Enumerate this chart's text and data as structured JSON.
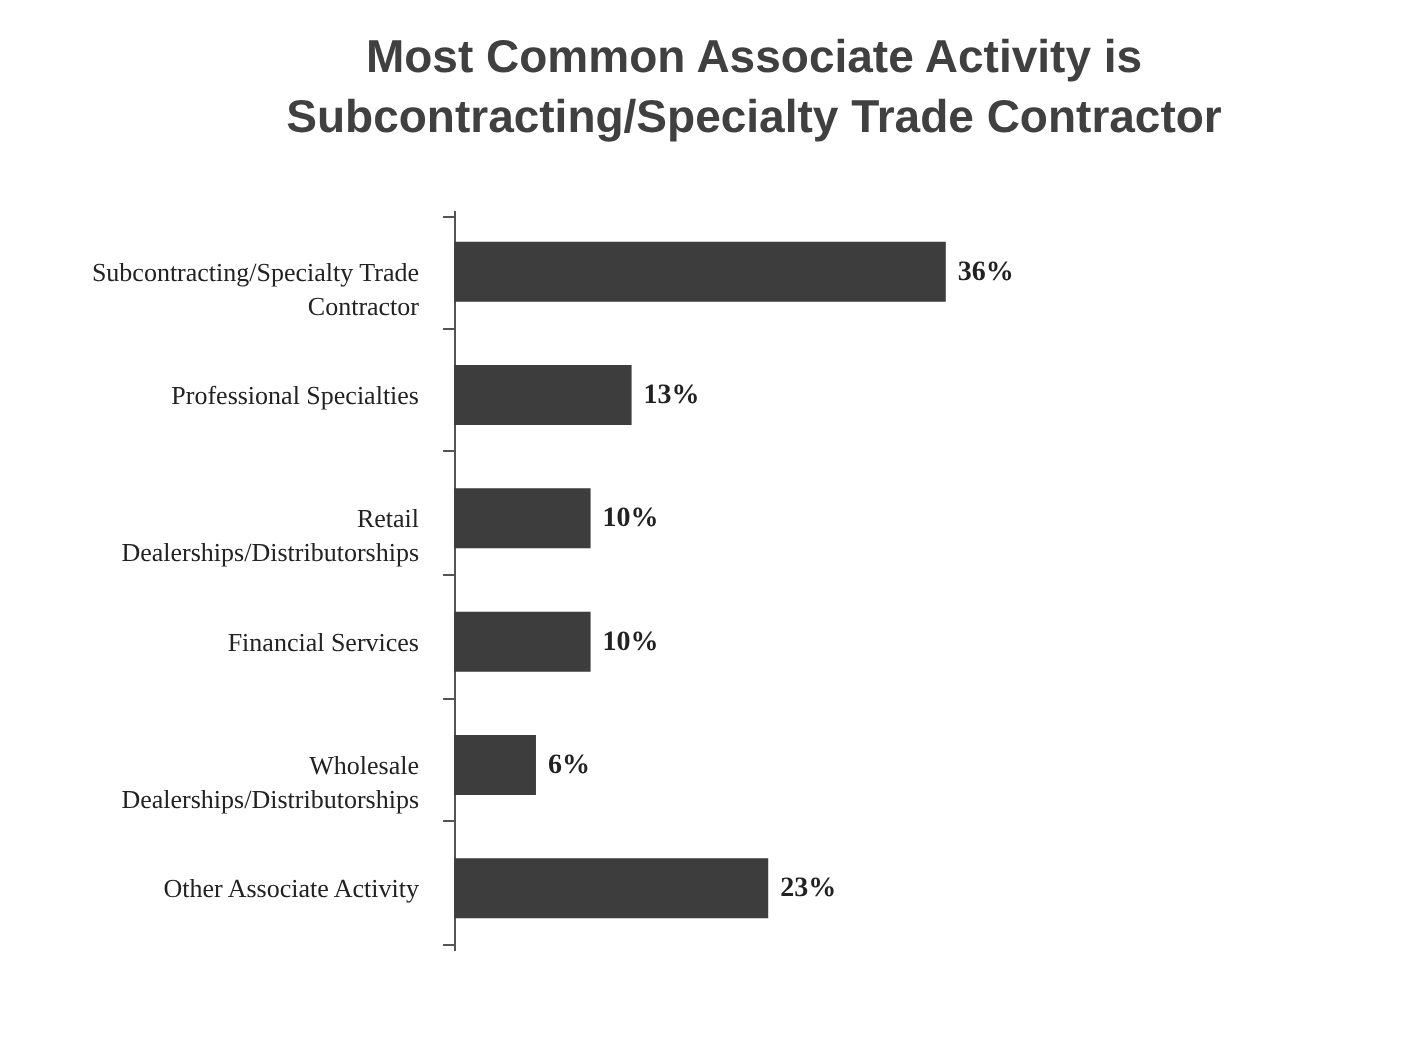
{
  "chart_data": {
    "type": "bar",
    "orientation": "horizontal",
    "title": [
      "Most Common Associate Activity is",
      "Subcontracting/Specialty Trade Contractor"
    ],
    "categories": [
      "Subcontracting/Specialty Trade\nContractor",
      "Professional Specialties",
      "Retail\nDealerships/Distributorships",
      "Financial Services",
      "Wholesale\nDealerships/Distributorships",
      "Other Associate Activity"
    ],
    "values": [
      36,
      13,
      10,
      10,
      6,
      23
    ],
    "value_labels": [
      "36%",
      "13%",
      "10%",
      "10%",
      "6%",
      "23%"
    ],
    "color": "#3d3d3d",
    "tick_labels": "y"
  }
}
